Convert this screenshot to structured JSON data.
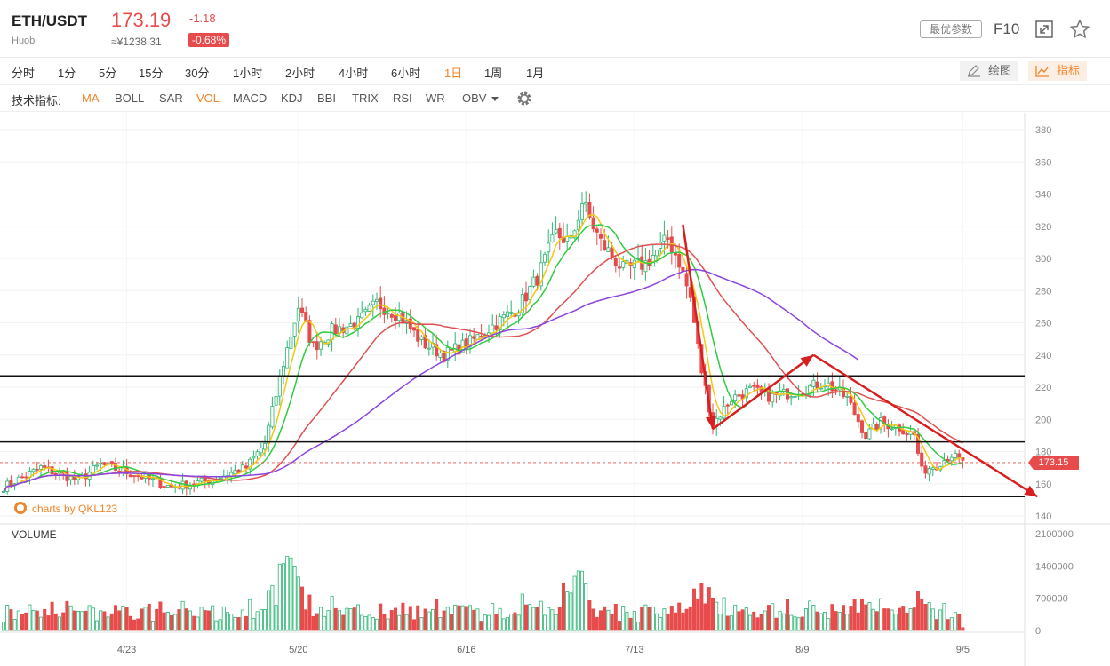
{
  "header": {
    "pair": "ETH/USDT",
    "exchange": "Huobi",
    "price": "173.19",
    "change": "-1.18",
    "price_cny": "≈¥1238.31",
    "change_pct": "-0.68%",
    "best_params_label": "最优参数",
    "f10_label": "F10",
    "icons": [
      "fullscreen-icon",
      "star-icon"
    ]
  },
  "periods": {
    "items": [
      "分时",
      "1分",
      "5分",
      "15分",
      "30分",
      "1小时",
      "2小时",
      "4小时",
      "6小时",
      "1日",
      "1周",
      "1月"
    ],
    "active": "1日",
    "draw_label": "绘图",
    "indicator_label": "指标"
  },
  "indicators": {
    "label": "技术指标:",
    "items": [
      "MA",
      "BOLL",
      "SAR",
      "VOL",
      "MACD",
      "KDJ",
      "BBI",
      "TRIX",
      "RSI",
      "WR",
      "OBV"
    ],
    "active": [
      "MA",
      "VOL"
    ]
  },
  "watermark": "charts by QKL123",
  "volume_label": "VOLUME",
  "colors": {
    "up": "#2bb673",
    "down": "#e84b4b",
    "accent": "#f0852b",
    "ma5": "#f2c811",
    "ma10": "#2ecc40",
    "ma30": "#e05050",
    "ma60": "#8a44e0"
  },
  "chart_data": {
    "type": "candlestick",
    "title": "ETH/USDT 1日",
    "x_ticks": [
      "4/23",
      "5/20",
      "6/16",
      "7/13",
      "8/9",
      "9/5"
    ],
    "y_ticks": [
      140,
      160,
      180,
      200,
      220,
      240,
      260,
      280,
      300,
      320,
      340,
      360,
      380
    ],
    "ylim": [
      130,
      390
    ],
    "last_price": "173.15",
    "volume_ticks": [
      "0",
      "700000",
      "1400000",
      "2100000"
    ],
    "volume_ylim": [
      0,
      2100000
    ],
    "close_anchors": [
      [
        0,
        158
      ],
      [
        10,
        170
      ],
      [
        20,
        162
      ],
      [
        26,
        172
      ],
      [
        36,
        165
      ],
      [
        45,
        158
      ],
      [
        55,
        162
      ],
      [
        65,
        170
      ],
      [
        70,
        185
      ],
      [
        75,
        235
      ],
      [
        79,
        270
      ],
      [
        83,
        245
      ],
      [
        88,
        255
      ],
      [
        95,
        260
      ],
      [
        100,
        272
      ],
      [
        106,
        265
      ],
      [
        112,
        248
      ],
      [
        118,
        240
      ],
      [
        125,
        248
      ],
      [
        131,
        258
      ],
      [
        138,
        270
      ],
      [
        143,
        288
      ],
      [
        148,
        315
      ],
      [
        152,
        310
      ],
      [
        155,
        335
      ],
      [
        160,
        310
      ],
      [
        166,
        293
      ],
      [
        172,
        297
      ],
      [
        178,
        312
      ],
      [
        181,
        298
      ],
      [
        184,
        275
      ],
      [
        187,
        230
      ],
      [
        190,
        197
      ],
      [
        195,
        213
      ],
      [
        200,
        218
      ],
      [
        206,
        214
      ],
      [
        213,
        218
      ],
      [
        220,
        223
      ],
      [
        226,
        213
      ],
      [
        231,
        190
      ],
      [
        235,
        198
      ],
      [
        240,
        195
      ],
      [
        244,
        190
      ],
      [
        246,
        168
      ],
      [
        250,
        172
      ],
      [
        254,
        178
      ],
      [
        257,
        173
      ]
    ],
    "annotations": {
      "horizontal_lines": [
        227,
        186,
        152
      ],
      "arrows": [
        {
          "from": [
            182,
            321
          ],
          "to": [
            190,
            194
          ]
        },
        {
          "from": [
            190,
            194
          ],
          "to": [
            217,
            240
          ]
        },
        {
          "from": [
            217,
            240
          ],
          "to": [
            277,
            152
          ]
        }
      ]
    },
    "grid": true
  }
}
